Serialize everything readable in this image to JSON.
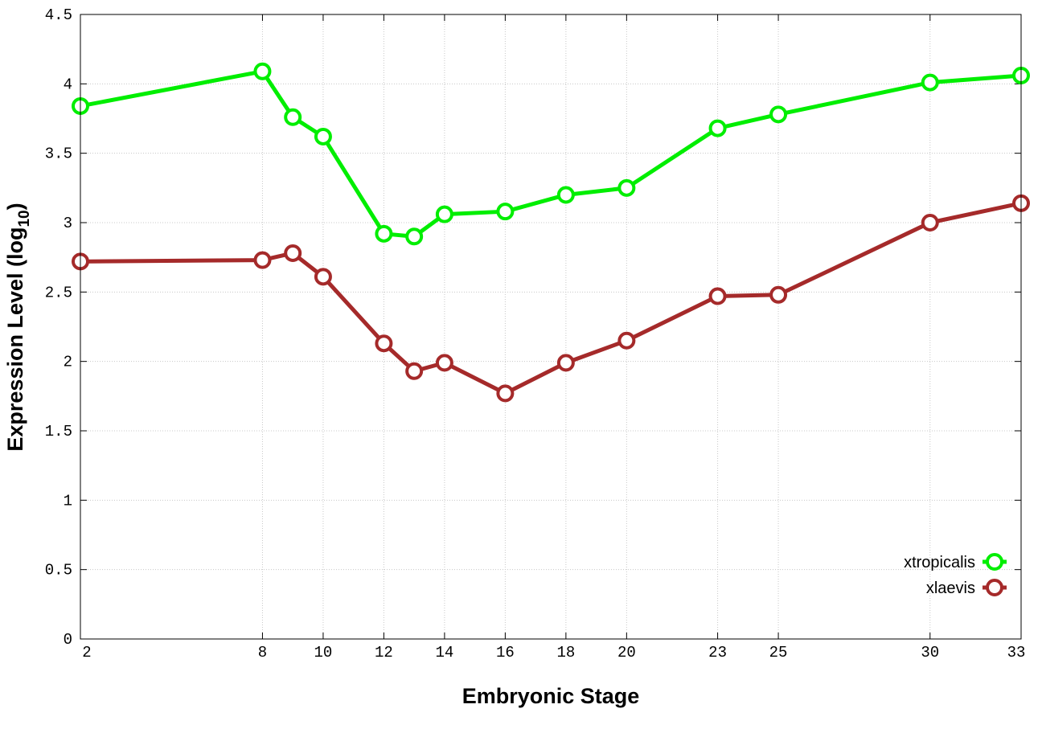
{
  "chart_data": {
    "type": "line",
    "title": "",
    "xlabel": "Embryonic Stage",
    "ylabel_main": "Expression Level (log",
    "ylabel_sub": "10",
    "ylabel_close": ")",
    "xlim": [
      2,
      33
    ],
    "ylim": [
      0,
      4.5
    ],
    "grid": true,
    "legend_position": "bottom-right",
    "x": [
      2,
      8,
      9,
      10,
      12,
      13,
      14,
      16,
      18,
      20,
      23,
      25,
      30,
      33
    ],
    "xticks": [
      2,
      8,
      10,
      12,
      14,
      16,
      18,
      20,
      23,
      25,
      30,
      33
    ],
    "yticks": [
      "0",
      "0.5",
      "1",
      "1.5",
      "2",
      "2.5",
      "3",
      "3.5",
      "4",
      "4.5"
    ],
    "series": [
      {
        "name": "xtropicalis",
        "color": "#00ee00",
        "values": [
          3.84,
          4.09,
          3.76,
          3.62,
          2.92,
          2.9,
          3.06,
          3.08,
          3.2,
          3.25,
          3.68,
          3.78,
          4.01,
          4.06
        ]
      },
      {
        "name": "xlaevis",
        "color": "#a52a2a",
        "values": [
          2.72,
          2.73,
          2.78,
          2.61,
          2.13,
          1.93,
          1.99,
          1.77,
          1.99,
          2.15,
          2.47,
          2.48,
          3.0,
          3.14
        ]
      }
    ]
  }
}
